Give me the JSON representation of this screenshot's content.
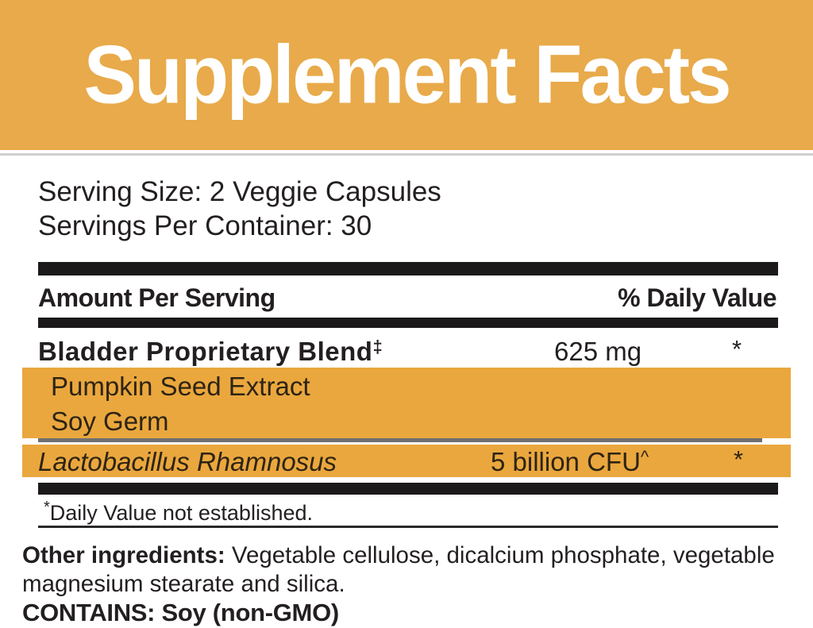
{
  "banner": {
    "title": "Supplement Facts"
  },
  "serving_info": {
    "serving_size": "Serving Size: 2 Veggie Capsules",
    "servings_per_container": "Servings Per Container: 30"
  },
  "table": {
    "header": {
      "amount_label": "Amount Per Serving",
      "daily_value_label": "% Daily Value"
    },
    "rows": [
      {
        "name": "Bladder Proprietary Blend",
        "name_superscript": "‡",
        "amount": "625 mg",
        "daily_value": "*"
      },
      {
        "name": "Pumpkin Seed Extract"
      },
      {
        "name": "Soy Germ"
      },
      {
        "name": "Lactobacillus Rhamnosus",
        "amount": "5 billion CFU",
        "amount_superscript": "^",
        "daily_value": "*"
      }
    ]
  },
  "footnote": {
    "superscript": "*",
    "text": "Daily Value not established."
  },
  "other_ingredients": {
    "label": "Other ingredients:",
    "text": " Vegetable cellulose, dicalcium phosphate, vegetable magnesium stearate and silica."
  },
  "contains": {
    "text": "CONTAINS: Soy (non-GMO)"
  },
  "colors": {
    "banner_orange": "#E8AA4A",
    "highlight_orange": "#EAA73E",
    "bar_black": "#1C191A",
    "text_black": "#231F20",
    "shadow_gray": "#6F6F6F"
  }
}
